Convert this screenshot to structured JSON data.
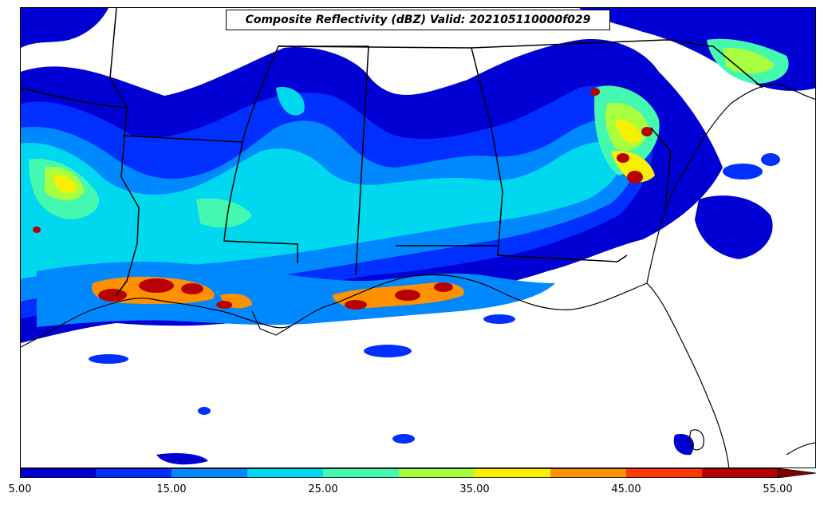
{
  "title": "Composite Reflectivity (dBZ) Valid: 202105110000f029",
  "colorbar": {
    "levels": [
      5,
      10,
      15,
      20,
      25,
      30,
      35,
      40,
      45,
      50,
      55
    ],
    "colors": [
      "#0000d4",
      "#0030ff",
      "#0088ff",
      "#00d8f0",
      "#44f8b0",
      "#a8ff40",
      "#f8f000",
      "#ff9000",
      "#ff3800",
      "#b80000",
      "#800000"
    ],
    "extend": "max",
    "tick_labels": [
      "5.00",
      "15.00",
      "25.00",
      "35.00",
      "45.00",
      "55.00"
    ]
  }
}
